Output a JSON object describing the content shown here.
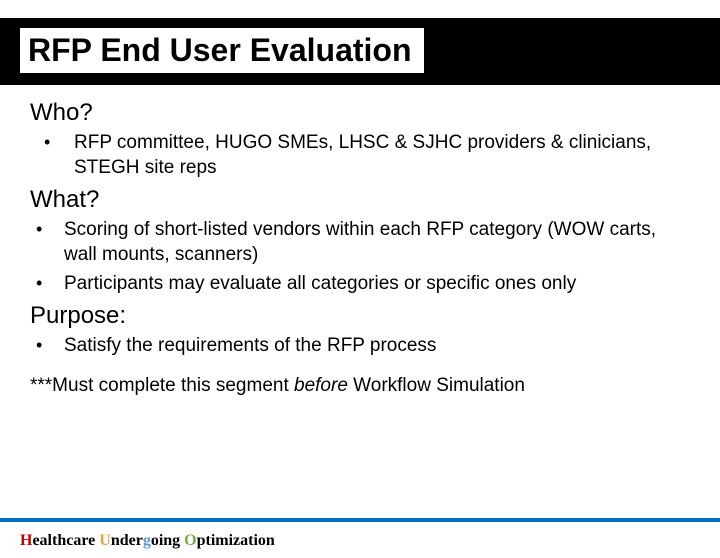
{
  "title": "RFP End User Evaluation",
  "sections": {
    "who": {
      "heading": "Who?",
      "items": [
        "RFP committee, HUGO SMEs, LHSC & SJHC providers & clinicians, STEGH site reps"
      ]
    },
    "what": {
      "heading": "What?",
      "items": [
        "Scoring of short-listed vendors within each RFP category (WOW carts, wall mounts, scanners)",
        "Participants may evaluate all categories or specific ones only"
      ]
    },
    "purpose": {
      "heading": "Purpose:",
      "items": [
        "Satisfy the requirements of the RFP process"
      ]
    }
  },
  "note_prefix": "***Must complete this segment ",
  "note_em": "before",
  "note_suffix": " Workflow Simulation",
  "footer": {
    "h": "H",
    "h_rest": "ealthcare ",
    "u": "U",
    "u_rest": "nder",
    "g": "g",
    "g_rest": "oing ",
    "o": "O",
    "o_rest": "ptimization"
  },
  "colors": {
    "title_bg": "#000000",
    "accent_line": "#0070c0",
    "h": "#c00000",
    "u": "#e8a33d",
    "g": "#5b9bd5",
    "o": "#70ad47"
  }
}
